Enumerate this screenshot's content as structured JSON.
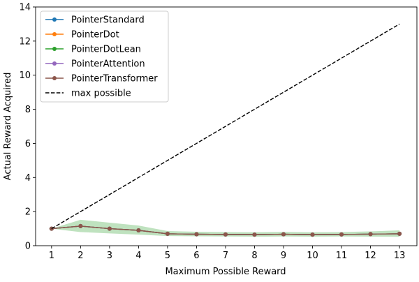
{
  "chart_data": {
    "type": "line",
    "xlabel": "Maximum Possible Reward",
    "ylabel": "Actual Reward Acquired",
    "x": [
      1,
      2,
      3,
      4,
      5,
      6,
      7,
      8,
      9,
      10,
      11,
      12,
      13
    ],
    "xlim": [
      0.45,
      13.6
    ],
    "ylim": [
      0,
      14
    ],
    "xticks": [
      1,
      2,
      3,
      4,
      5,
      6,
      7,
      8,
      9,
      10,
      11,
      12,
      13
    ],
    "yticks": [
      0,
      2,
      4,
      6,
      8,
      10,
      12,
      14
    ],
    "grid": false,
    "legend_position": "upper left",
    "series": [
      {
        "name": "PointerStandard",
        "color": "#1f77b4",
        "values": [
          1.0,
          1.15,
          1.0,
          0.9,
          0.7,
          0.67,
          0.66,
          0.65,
          0.67,
          0.65,
          0.66,
          0.68,
          0.7
        ],
        "band_low": [
          1.0,
          0.8,
          0.72,
          0.65,
          0.57,
          0.55,
          0.54,
          0.53,
          0.54,
          0.53,
          0.54,
          0.53,
          0.52
        ],
        "band_high": [
          1.0,
          1.52,
          1.35,
          1.18,
          0.86,
          0.82,
          0.8,
          0.79,
          0.81,
          0.79,
          0.8,
          0.84,
          0.9
        ]
      },
      {
        "name": "PointerDot",
        "color": "#ff7f0e",
        "values": [
          1.0,
          1.15,
          1.0,
          0.9,
          0.7,
          0.67,
          0.66,
          0.65,
          0.67,
          0.65,
          0.66,
          0.68,
          0.7
        ],
        "band_low": [
          1.0,
          0.8,
          0.72,
          0.65,
          0.57,
          0.55,
          0.54,
          0.53,
          0.54,
          0.53,
          0.54,
          0.53,
          0.52
        ],
        "band_high": [
          1.0,
          1.52,
          1.35,
          1.18,
          0.86,
          0.82,
          0.8,
          0.79,
          0.81,
          0.79,
          0.8,
          0.84,
          0.9
        ]
      },
      {
        "name": "PointerDotLean",
        "color": "#2ca02c",
        "values": [
          1.0,
          1.15,
          1.0,
          0.9,
          0.7,
          0.67,
          0.66,
          0.65,
          0.67,
          0.65,
          0.66,
          0.68,
          0.7
        ],
        "band_low": [
          1.0,
          0.8,
          0.72,
          0.65,
          0.57,
          0.55,
          0.54,
          0.53,
          0.54,
          0.53,
          0.54,
          0.53,
          0.52
        ],
        "band_high": [
          1.0,
          1.52,
          1.35,
          1.18,
          0.86,
          0.82,
          0.8,
          0.79,
          0.81,
          0.79,
          0.8,
          0.84,
          0.9
        ]
      },
      {
        "name": "PointerAttention",
        "color": "#9467bd",
        "values": [
          1.0,
          1.15,
          1.0,
          0.9,
          0.7,
          0.67,
          0.66,
          0.65,
          0.67,
          0.65,
          0.66,
          0.68,
          0.7
        ],
        "band_low": [
          1.0,
          0.8,
          0.72,
          0.65,
          0.57,
          0.55,
          0.54,
          0.53,
          0.54,
          0.53,
          0.54,
          0.53,
          0.52
        ],
        "band_high": [
          1.0,
          1.52,
          1.35,
          1.18,
          0.86,
          0.82,
          0.8,
          0.79,
          0.81,
          0.79,
          0.8,
          0.84,
          0.9
        ]
      },
      {
        "name": "PointerTransformer",
        "color": "#8c564b",
        "values": [
          1.0,
          1.15,
          1.0,
          0.9,
          0.7,
          0.67,
          0.66,
          0.65,
          0.67,
          0.65,
          0.66,
          0.68,
          0.7
        ],
        "band_low": [
          1.0,
          0.8,
          0.72,
          0.65,
          0.57,
          0.55,
          0.54,
          0.53,
          0.54,
          0.53,
          0.54,
          0.53,
          0.52
        ],
        "band_high": [
          1.0,
          1.52,
          1.35,
          1.18,
          0.86,
          0.82,
          0.8,
          0.79,
          0.81,
          0.79,
          0.8,
          0.84,
          0.9
        ]
      },
      {
        "name": "max possible",
        "color": "#000000",
        "style": "dashed",
        "values": [
          1,
          2,
          3,
          4,
          5,
          6,
          7,
          8,
          9,
          10,
          11,
          12,
          13
        ]
      }
    ]
  }
}
